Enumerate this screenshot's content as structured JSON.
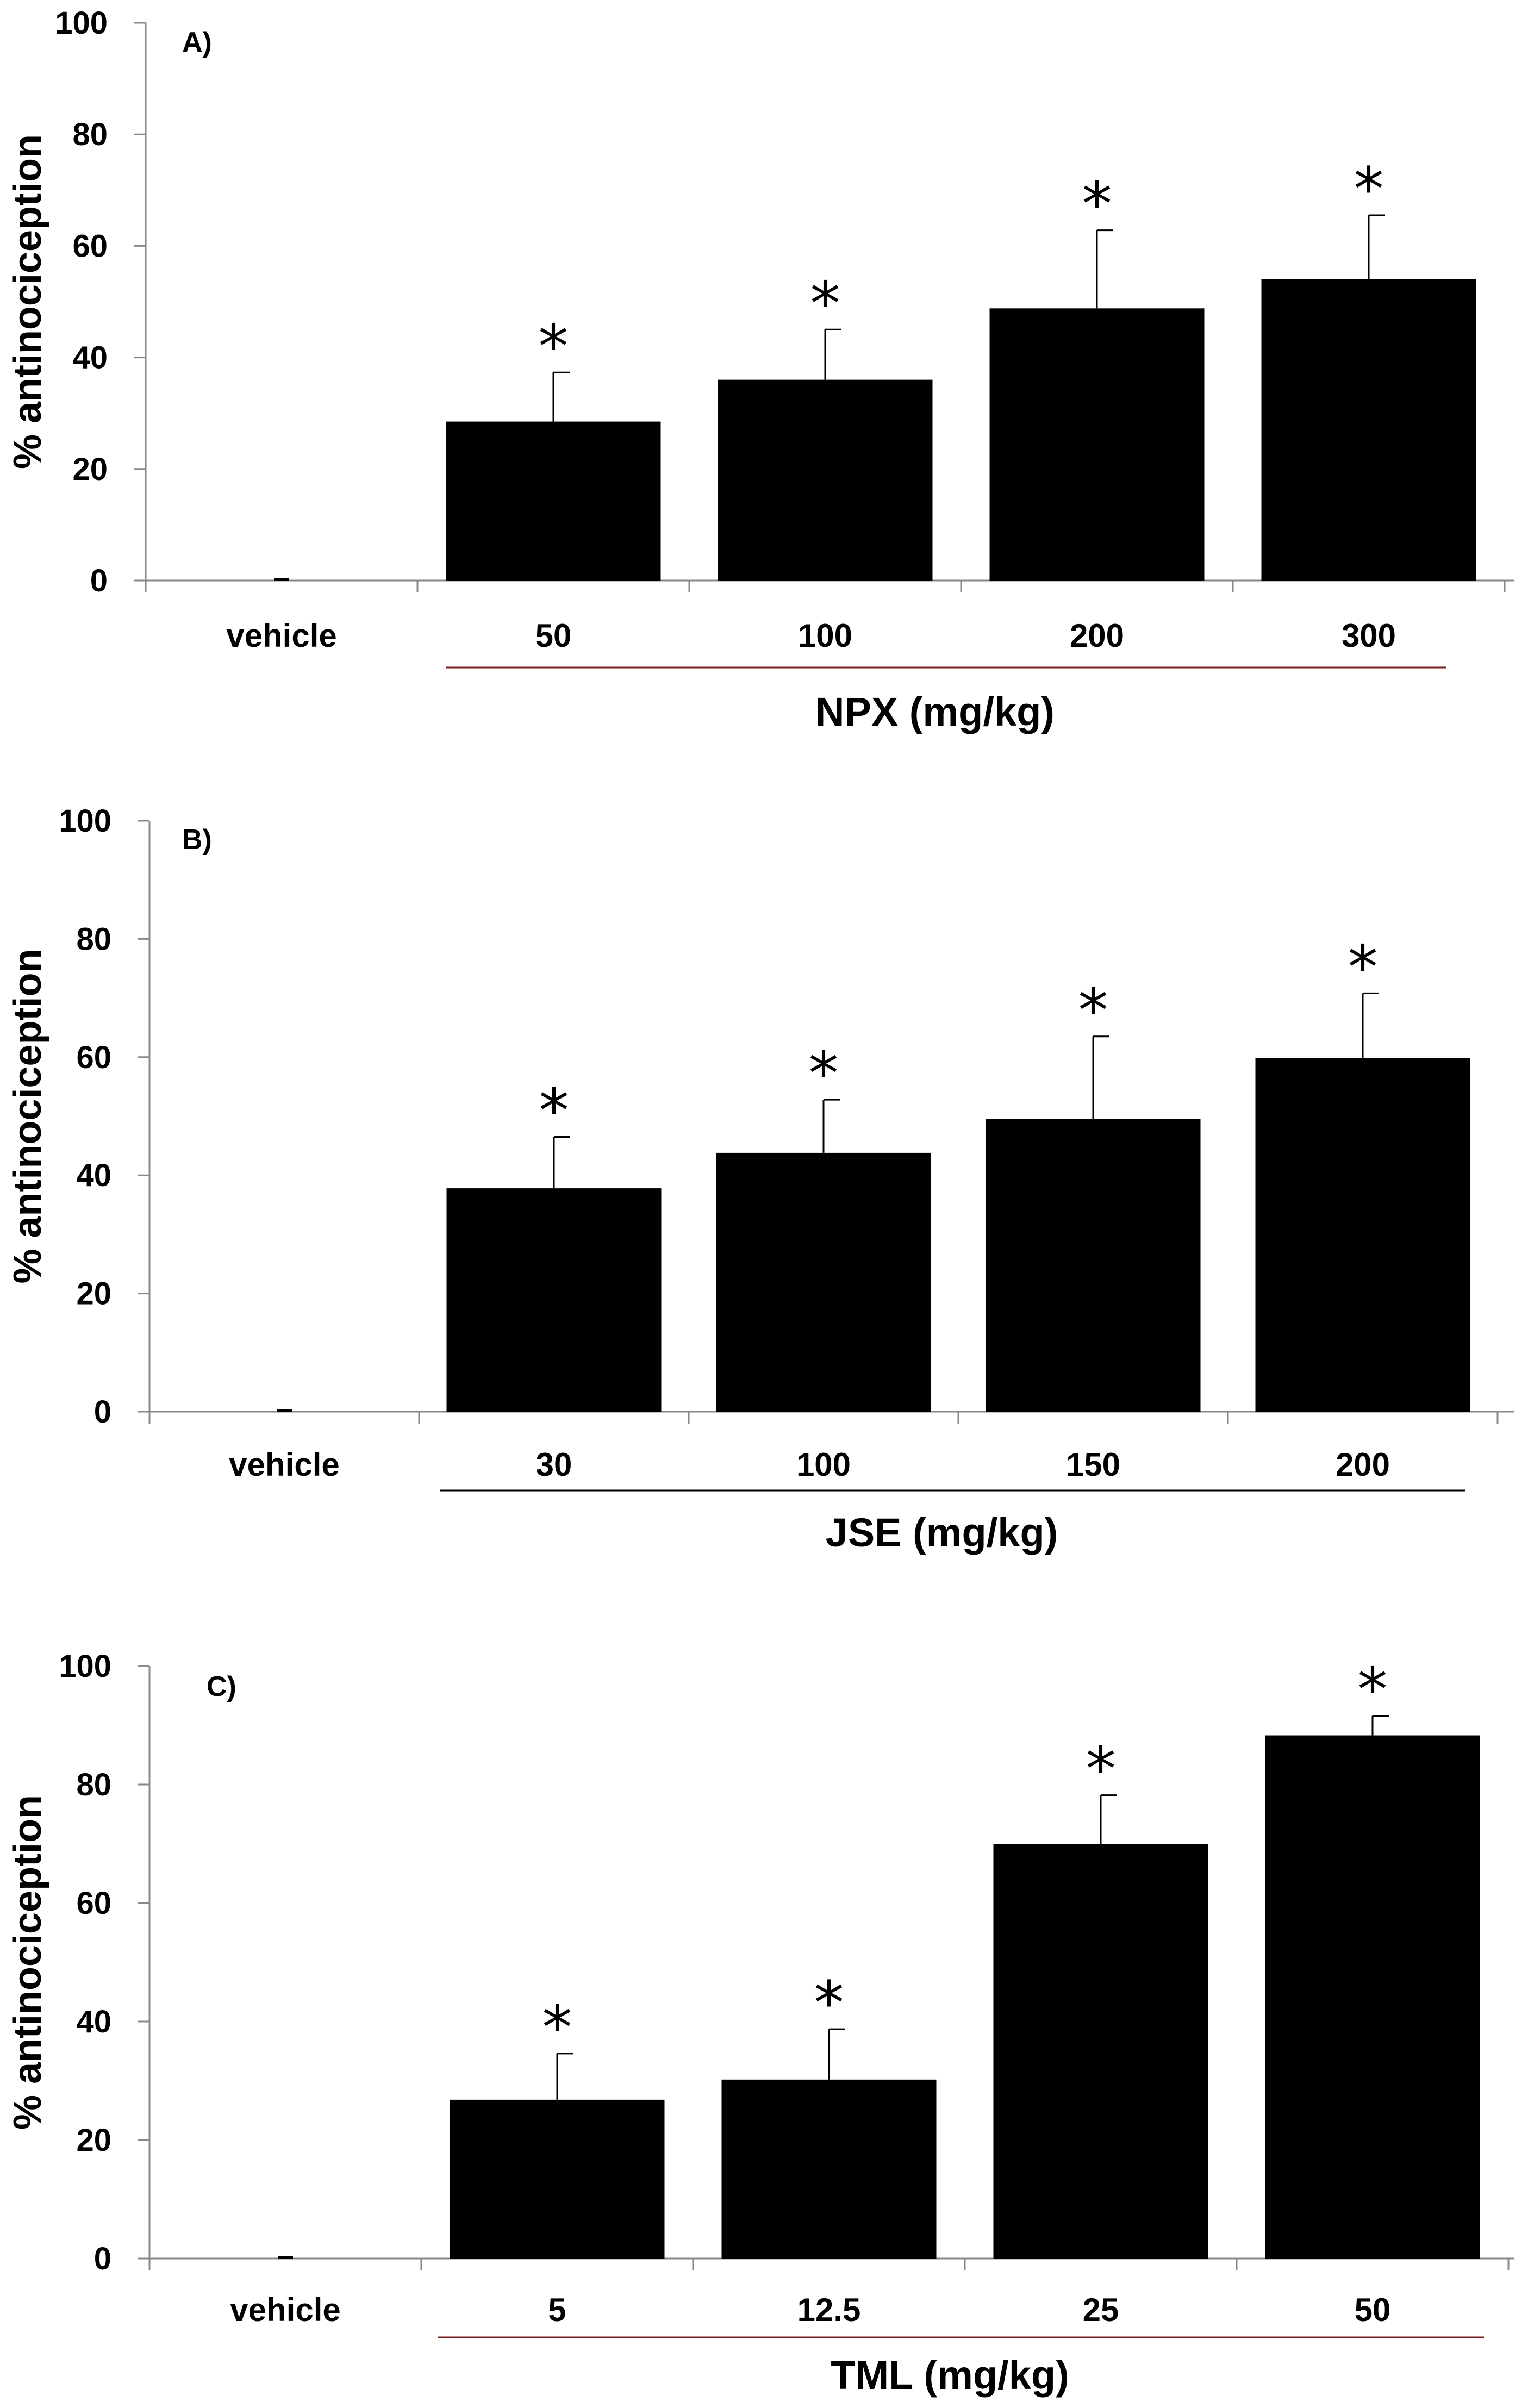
{
  "chart_data": [
    {
      "type": "bar",
      "panel_label": "A)",
      "ylabel": "% antinociception",
      "xtitle": "NPX (mg/kg)",
      "ylim": [
        0,
        100
      ],
      "yticks": [
        0,
        20,
        40,
        60,
        80,
        100
      ],
      "categories": [
        "vehicle",
        "50",
        "100",
        "200",
        "300"
      ],
      "values": [
        0,
        28.5,
        36,
        48.8,
        54
      ],
      "errors": [
        0,
        8.8,
        9,
        14,
        11.5
      ],
      "significance": [
        "",
        "*",
        "*",
        "*",
        "*"
      ],
      "bar_color": "#000000",
      "bracket_color": "#7a1f1f"
    },
    {
      "type": "bar",
      "panel_label": "B)",
      "ylabel": "% antinociception",
      "xtitle": "JSE (mg/kg)",
      "ylim": [
        0,
        100
      ],
      "yticks": [
        0,
        20,
        40,
        60,
        80,
        100
      ],
      "categories": [
        "vehicle",
        "30",
        "100",
        "150",
        "200"
      ],
      "values": [
        0,
        37.8,
        43.8,
        49.5,
        59.8
      ],
      "errors": [
        0,
        8.7,
        9,
        14,
        11
      ],
      "significance": [
        "",
        "*",
        "*",
        "*",
        "*"
      ],
      "bar_color": "#000000",
      "bracket_color": "#000000"
    },
    {
      "type": "bar",
      "panel_label": "C)",
      "ylabel": "% antinociception",
      "xtitle": "TML (mg/kg)",
      "ylim": [
        0,
        100
      ],
      "yticks": [
        0,
        20,
        40,
        60,
        80,
        100
      ],
      "categories": [
        "vehicle",
        "5",
        "12.5",
        "25",
        "50"
      ],
      "values": [
        0,
        26.8,
        30.2,
        70,
        88.3
      ],
      "errors": [
        0,
        7.8,
        8.5,
        8.2,
        3.3
      ],
      "significance": [
        "",
        "*",
        "*",
        "*",
        "*"
      ],
      "bar_color": "#000000",
      "bracket_color": "#7a1f1f"
    }
  ]
}
